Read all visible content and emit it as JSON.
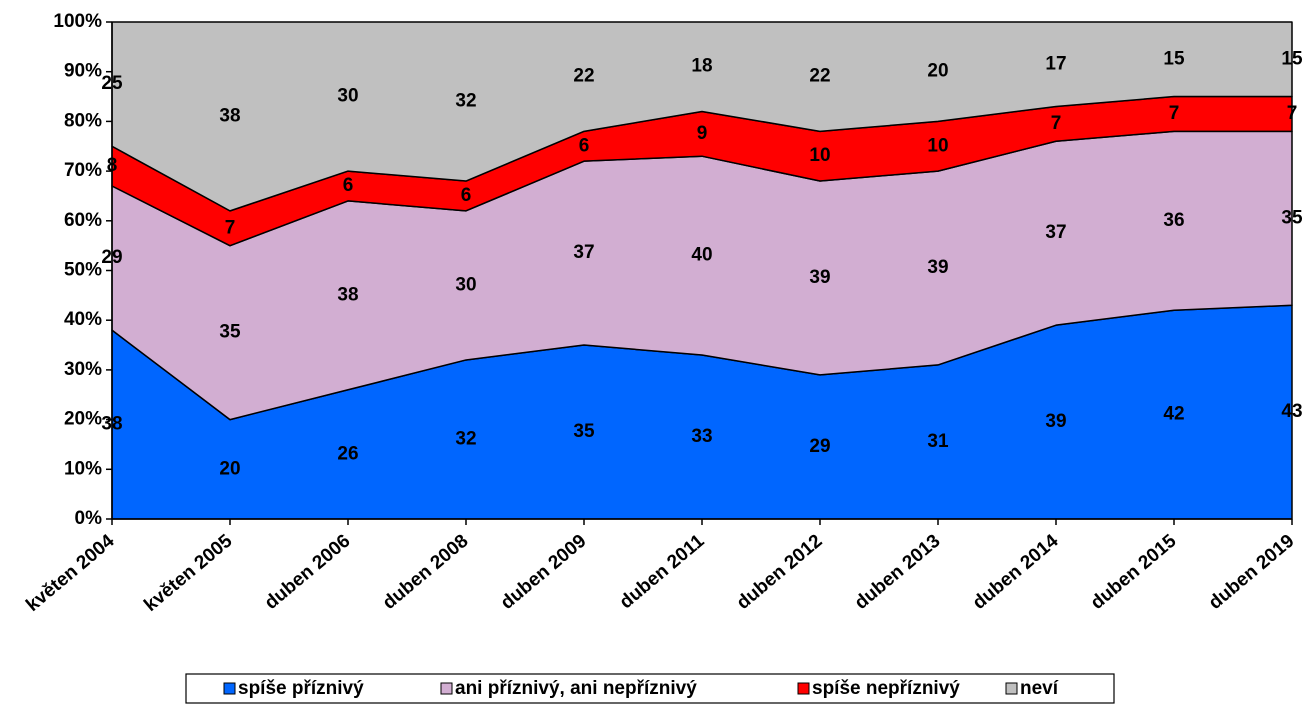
{
  "chart_data": {
    "type": "stacked-area",
    "categories": [
      "květen 2004",
      "květen 2005",
      "duben 2006",
      "duben 2008",
      "duben 2009",
      "duben 2011",
      "duben 2012",
      "duben 2013",
      "duben 2014",
      "duben 2015",
      "duben 2019"
    ],
    "series": [
      {
        "name": "spíše příznivý",
        "color": "#0066ff",
        "values": [
          38,
          20,
          26,
          32,
          35,
          33,
          29,
          31,
          39,
          42,
          43
        ]
      },
      {
        "name": "ani příznivý, ani nepříznivý",
        "color": "#d2aed2",
        "values": [
          29,
          35,
          38,
          30,
          37,
          40,
          39,
          39,
          37,
          36,
          35
        ]
      },
      {
        "name": "spíše nepříznivý",
        "color": "#ff0000",
        "values": [
          8,
          7,
          6,
          6,
          6,
          9,
          10,
          10,
          7,
          7,
          7
        ]
      },
      {
        "name": "neví",
        "color": "#c0c0c0",
        "values": [
          25,
          38,
          30,
          32,
          22,
          18,
          22,
          20,
          17,
          15,
          15
        ]
      }
    ],
    "ylim": [
      0,
      100
    ],
    "yticks": [
      {
        "value": 0,
        "label": "0%"
      },
      {
        "value": 10,
        "label": "10%"
      },
      {
        "value": 20,
        "label": "20%"
      },
      {
        "value": 30,
        "label": "30%"
      },
      {
        "value": 40,
        "label": "40%"
      },
      {
        "value": 50,
        "label": "50%"
      },
      {
        "value": 60,
        "label": "60%"
      },
      {
        "value": 70,
        "label": "70%"
      },
      {
        "value": 80,
        "label": "80%"
      },
      {
        "value": 90,
        "label": "90%"
      },
      {
        "value": 100,
        "label": "100%"
      }
    ],
    "grid": false,
    "legend": "bottom"
  }
}
